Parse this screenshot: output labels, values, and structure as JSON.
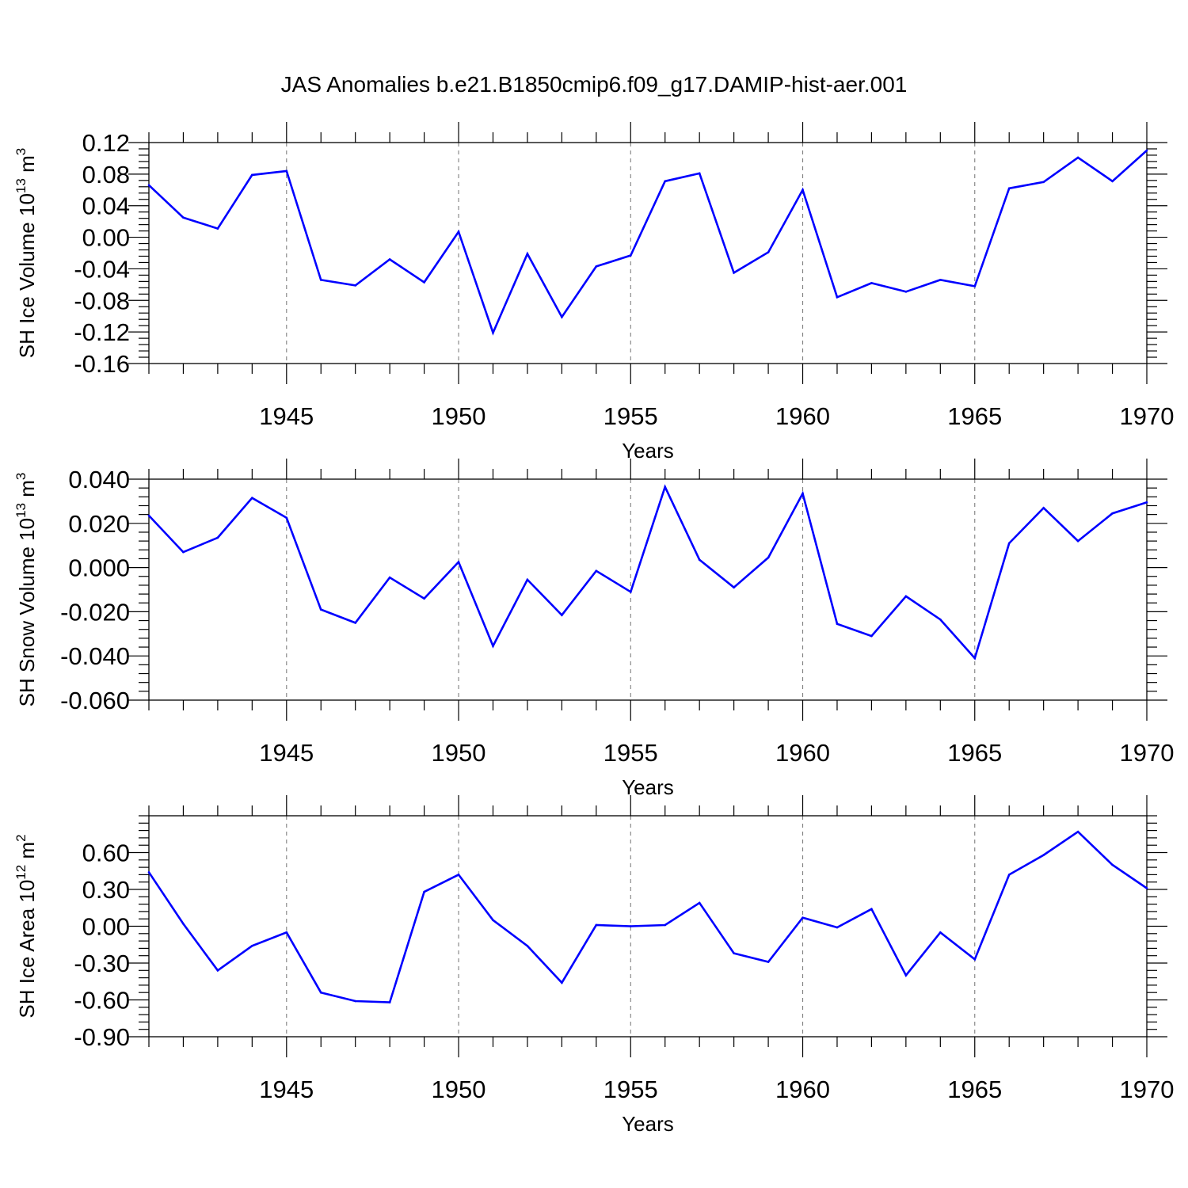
{
  "page": {
    "title": "JAS Anomalies b.e21.B1850cmip6.f09_g17.DAMIP-hist-aer.001"
  },
  "colors": {
    "series": "#0000ff",
    "grid": "#7f7f7f",
    "axis": "#000000"
  },
  "chart_data": [
    {
      "type": "line",
      "id": "ice-volume",
      "title": "",
      "xlabel": "Years",
      "ylabel": {
        "text": "SH Ice Volume 10",
        "exp": "13",
        "unit": " m",
        "unit_exp": "3"
      },
      "xlim": [
        1941,
        1970
      ],
      "ylim": [
        -0.16,
        0.12
      ],
      "x_major_ticks": [
        1945,
        1950,
        1955,
        1960,
        1965,
        1970
      ],
      "x_tick_labels": [
        "1945",
        "1950",
        "1955",
        "1960",
        "1965",
        "1970"
      ],
      "y_major_ticks": [
        -0.16,
        -0.12,
        -0.08,
        -0.04,
        0.0,
        0.04,
        0.08,
        0.12
      ],
      "y_tick_labels": [
        "-0.16",
        "-0.12",
        "-0.08",
        "-0.04",
        "0.00",
        "0.04",
        "0.08",
        "0.12"
      ],
      "y_minor_step": 0.008,
      "grid": "x-major-dashed",
      "x": [
        1941,
        1942,
        1943,
        1944,
        1945,
        1946,
        1947,
        1948,
        1949,
        1950,
        1951,
        1952,
        1953,
        1954,
        1955,
        1956,
        1957,
        1958,
        1959,
        1960,
        1961,
        1962,
        1963,
        1964,
        1965,
        1966,
        1967,
        1968,
        1969,
        1970
      ],
      "values": [
        0.066,
        0.025,
        0.011,
        0.079,
        0.084,
        -0.054,
        -0.061,
        -0.028,
        -0.057,
        0.007,
        -0.121,
        -0.021,
        -0.101,
        -0.037,
        -0.023,
        0.071,
        0.081,
        -0.045,
        -0.019,
        0.06,
        -0.076,
        -0.058,
        -0.069,
        -0.054,
        -0.062,
        0.062,
        0.07,
        0.101,
        0.071,
        0.11
      ]
    },
    {
      "type": "line",
      "id": "snow-volume",
      "title": "",
      "xlabel": "Years",
      "ylabel": {
        "text": "SH Snow Volume 10",
        "exp": "13",
        "unit": " m",
        "unit_exp": "3"
      },
      "xlim": [
        1941,
        1970
      ],
      "ylim": [
        -0.06,
        0.04
      ],
      "x_major_ticks": [
        1945,
        1950,
        1955,
        1960,
        1965,
        1970
      ],
      "x_tick_labels": [
        "1945",
        "1950",
        "1955",
        "1960",
        "1965",
        "1970"
      ],
      "y_major_ticks": [
        -0.06,
        -0.04,
        -0.02,
        0.0,
        0.02,
        0.04
      ],
      "y_tick_labels": [
        "-0.060",
        "-0.040",
        "-0.020",
        "0.000",
        "0.020",
        "0.040"
      ],
      "y_minor_step": 0.004,
      "grid": "x-major-dashed",
      "x": [
        1941,
        1942,
        1943,
        1944,
        1945,
        1946,
        1947,
        1948,
        1949,
        1950,
        1951,
        1952,
        1953,
        1954,
        1955,
        1956,
        1957,
        1958,
        1959,
        1960,
        1961,
        1962,
        1963,
        1964,
        1965,
        1966,
        1967,
        1968,
        1969,
        1970
      ],
      "values": [
        0.0235,
        0.007,
        0.0135,
        0.0315,
        0.0225,
        -0.019,
        -0.025,
        -0.0045,
        -0.014,
        0.0025,
        -0.0355,
        -0.0055,
        -0.0215,
        -0.0015,
        -0.011,
        0.0365,
        0.0035,
        -0.009,
        0.0045,
        0.0335,
        -0.0255,
        -0.031,
        -0.013,
        -0.0235,
        -0.041,
        0.011,
        0.027,
        0.012,
        0.0245,
        0.0295
      ]
    },
    {
      "type": "line",
      "id": "ice-area",
      "title": "",
      "xlabel": "Years",
      "ylabel": {
        "text": "SH Ice Area 10",
        "exp": "12",
        "unit": " m",
        "unit_exp": "2"
      },
      "xlim": [
        1941,
        1970
      ],
      "ylim": [
        -0.9,
        0.9
      ],
      "x_major_ticks": [
        1945,
        1950,
        1955,
        1960,
        1965,
        1970
      ],
      "x_tick_labels": [
        "1945",
        "1950",
        "1955",
        "1960",
        "1965",
        "1970"
      ],
      "y_major_ticks": [
        -0.9,
        -0.6,
        -0.3,
        0.0,
        0.3,
        0.6
      ],
      "y_tick_labels": [
        "-0.90",
        "-0.60",
        "-0.30",
        "0.00",
        "0.30",
        "0.60"
      ],
      "y_minor_step": 0.06,
      "grid": "x-major-dashed",
      "x": [
        1941,
        1942,
        1943,
        1944,
        1945,
        1946,
        1947,
        1948,
        1949,
        1950,
        1951,
        1952,
        1953,
        1954,
        1955,
        1956,
        1957,
        1958,
        1959,
        1960,
        1961,
        1962,
        1963,
        1964,
        1965,
        1966,
        1967,
        1968,
        1969,
        1970
      ],
      "values": [
        0.44,
        0.02,
        -0.36,
        -0.16,
        -0.05,
        -0.54,
        -0.61,
        -0.62,
        0.28,
        0.42,
        0.05,
        -0.16,
        -0.46,
        0.01,
        0.0,
        0.01,
        0.19,
        -0.22,
        -0.29,
        0.07,
        -0.01,
        0.14,
        -0.4,
        -0.05,
        -0.27,
        0.42,
        0.58,
        0.77,
        0.5,
        0.31
      ]
    }
  ]
}
